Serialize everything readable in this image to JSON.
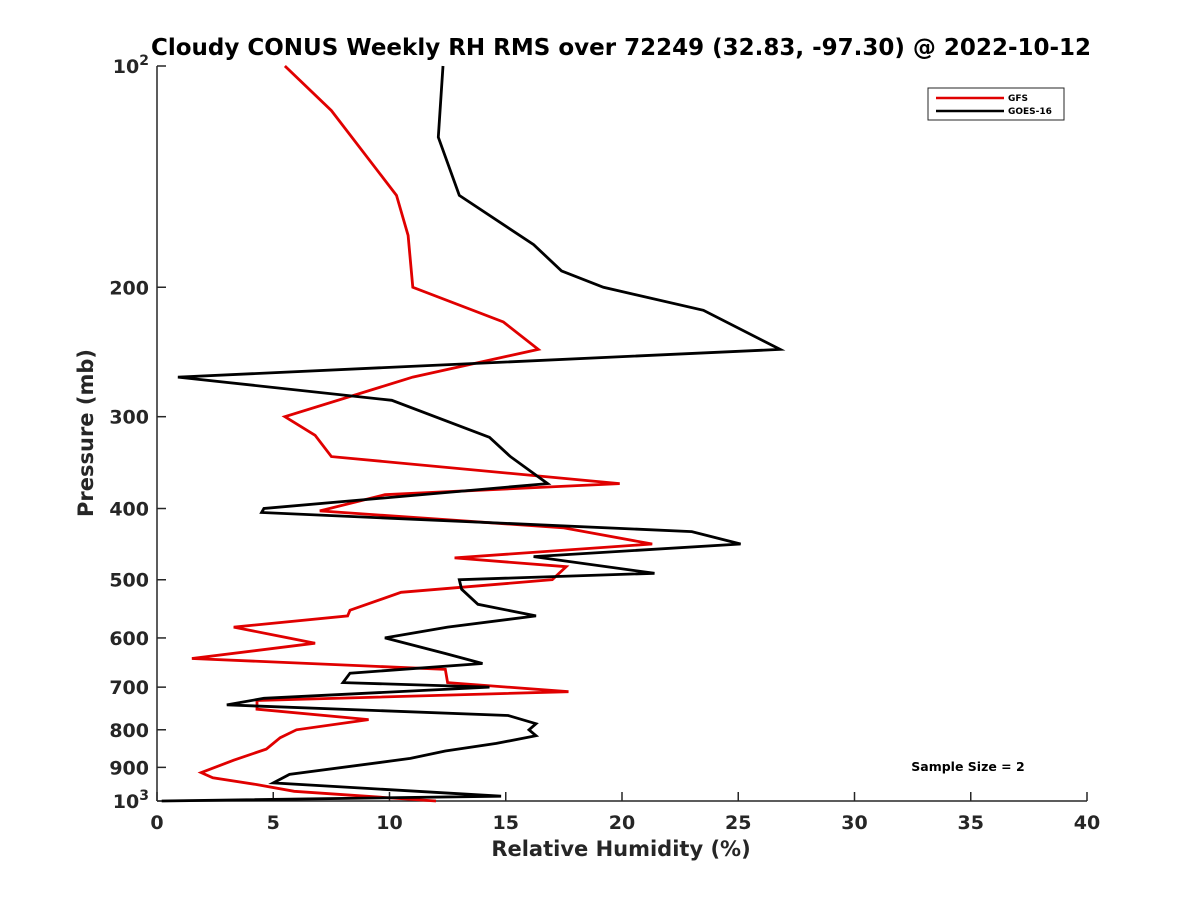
{
  "chart_data": {
    "type": "line",
    "title": "Cloudy CONUS Weekly RH RMS over 72249 (32.83, -97.30) @ 2022-10-12",
    "xlabel": "Relative Humidity (%)",
    "ylabel": "Pressure (mb)",
    "xlim": [
      0,
      40
    ],
    "ylim": [
      100,
      1000
    ],
    "y_scale": "log",
    "y_reversed": true,
    "grid": false,
    "legend_position": "top-right",
    "x_ticks": [
      "0",
      "5",
      "10",
      "15",
      "20",
      "25",
      "30",
      "35",
      "40"
    ],
    "y_ticks": [
      {
        "value": 100,
        "base": "10",
        "exp": "2"
      },
      {
        "value": 200,
        "label": "200"
      },
      {
        "value": 300,
        "label": "300"
      },
      {
        "value": 400,
        "label": "400"
      },
      {
        "value": 500,
        "label": "500"
      },
      {
        "value": 600,
        "label": "600"
      },
      {
        "value": 700,
        "label": "700"
      },
      {
        "value": 800,
        "label": "800"
      },
      {
        "value": 900,
        "label": "900"
      },
      {
        "value": 1000,
        "base": "10",
        "exp": "3"
      }
    ],
    "annotation": "Sample Size = 2",
    "series": [
      {
        "name": "GFS",
        "color": "#e00000",
        "points": [
          [
            5.5,
            100
          ],
          [
            7.5,
            115
          ],
          [
            10.3,
            150
          ],
          [
            10.8,
            170
          ],
          [
            11.0,
            200
          ],
          [
            14.9,
            223
          ],
          [
            16.4,
            243
          ],
          [
            11.0,
            265
          ],
          [
            5.5,
            300
          ],
          [
            6.8,
            318
          ],
          [
            7.5,
            340
          ],
          [
            19.9,
            370
          ],
          [
            9.8,
            383
          ],
          [
            7.0,
            403
          ],
          [
            17.5,
            425
          ],
          [
            21.3,
            447
          ],
          [
            12.8,
            467
          ],
          [
            17.6,
            480
          ],
          [
            17.0,
            500
          ],
          [
            10.5,
            520
          ],
          [
            8.3,
            550
          ],
          [
            8.2,
            560
          ],
          [
            3.3,
            580
          ],
          [
            6.8,
            610
          ],
          [
            1.5,
            640
          ],
          [
            12.4,
            662
          ],
          [
            12.5,
            690
          ],
          [
            17.7,
            710
          ],
          [
            4.3,
            730
          ],
          [
            4.3,
            750
          ],
          [
            9.1,
            775
          ],
          [
            6.0,
            800
          ],
          [
            5.3,
            820
          ],
          [
            4.7,
            850
          ],
          [
            3.3,
            880
          ],
          [
            1.9,
            915
          ],
          [
            2.4,
            930
          ],
          [
            4.3,
            950
          ],
          [
            5.9,
            970
          ],
          [
            12.0,
            1000
          ]
        ]
      },
      {
        "name": "GOES-16",
        "color": "#000000",
        "points": [
          [
            12.3,
            100
          ],
          [
            12.1,
            125
          ],
          [
            13.0,
            150
          ],
          [
            16.2,
            175
          ],
          [
            17.4,
            190
          ],
          [
            19.2,
            200
          ],
          [
            23.5,
            215
          ],
          [
            26.8,
            243
          ],
          [
            0.9,
            265
          ],
          [
            10.1,
            285
          ],
          [
            14.3,
            320
          ],
          [
            15.2,
            340
          ],
          [
            16.8,
            370
          ],
          [
            4.6,
            400
          ],
          [
            4.5,
            405
          ],
          [
            23.0,
            430
          ],
          [
            25.1,
            447
          ],
          [
            16.2,
            465
          ],
          [
            21.4,
            490
          ],
          [
            13.0,
            500
          ],
          [
            13.1,
            515
          ],
          [
            13.8,
            540
          ],
          [
            16.3,
            560
          ],
          [
            12.5,
            580
          ],
          [
            9.8,
            600
          ],
          [
            12.4,
            630
          ],
          [
            14.0,
            650
          ],
          [
            8.3,
            670
          ],
          [
            8.0,
            690
          ],
          [
            14.3,
            700
          ],
          [
            4.6,
            725
          ],
          [
            3.0,
            740
          ],
          [
            15.1,
            765
          ],
          [
            16.3,
            785
          ],
          [
            16.0,
            800
          ],
          [
            16.3,
            815
          ],
          [
            14.6,
            835
          ],
          [
            12.4,
            855
          ],
          [
            10.9,
            875
          ],
          [
            5.7,
            920
          ],
          [
            5.0,
            945
          ],
          [
            14.8,
            985
          ],
          [
            0.2,
            1000
          ]
        ]
      }
    ]
  }
}
